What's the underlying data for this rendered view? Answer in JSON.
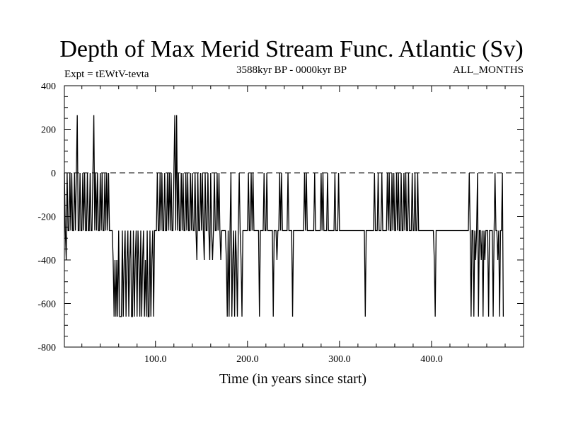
{
  "chart_data": {
    "type": "line",
    "title": "Depth of Max Merid Stream Func. Atlantic (Sv)",
    "subtitle_left": "Expt = tEWtV-tevta",
    "subtitle_center": "3588kyr BP - 0000kyr BP",
    "subtitle_right": "ALL_MONTHS",
    "xlabel": "Time (in years since start)",
    "ylabel": "",
    "xlim": [
      1,
      500
    ],
    "ylim": [
      -800,
      400
    ],
    "x_ticks": [
      100,
      200,
      300,
      400
    ],
    "x_tick_labels": [
      "100.0",
      "200.0",
      "300.0",
      "400.0"
    ],
    "y_ticks": [
      -800,
      -600,
      -400,
      -200,
      0,
      200,
      400
    ],
    "y_tick_labels": [
      "-800",
      "-600",
      "-400",
      "-200",
      "0",
      "200",
      "400"
    ],
    "zero_line": 0,
    "grid": false,
    "series": [
      {
        "x_start": 1,
        "x_step": 1,
        "values": [
          0,
          -265,
          -400,
          0,
          -265,
          -265,
          0,
          -265,
          0,
          -265,
          -265,
          0,
          -265,
          0,
          265,
          -265,
          -265,
          0,
          -265,
          -265,
          0,
          -265,
          0,
          -265,
          -265,
          0,
          -265,
          -265,
          0,
          -265,
          -265,
          0,
          265,
          -265,
          0,
          -265,
          0,
          -265,
          -265,
          0,
          -265,
          0,
          -265,
          -265,
          0,
          -265,
          0,
          -265,
          0,
          -265,
          -265,
          -265,
          -265,
          -400,
          -660,
          -400,
          -660,
          -400,
          -660,
          -265,
          -660,
          -660,
          -660,
          -265,
          -660,
          -400,
          -265,
          -660,
          -400,
          -265,
          -660,
          -400,
          -265,
          -660,
          -660,
          -265,
          -660,
          -400,
          -265,
          -660,
          -265,
          -400,
          -660,
          -265,
          -660,
          -400,
          -265,
          -660,
          -400,
          -660,
          -265,
          -660,
          -660,
          -265,
          -660,
          -400,
          -265,
          -660,
          -265,
          -265,
          -265,
          0,
          -265,
          -265,
          0,
          -265,
          0,
          -265,
          -265,
          0,
          -265,
          -265,
          0,
          -265,
          0,
          -265,
          0,
          -265,
          -265,
          0,
          265,
          -265,
          265,
          -265,
          0,
          -265,
          -265,
          0,
          -265,
          0,
          -265,
          -265,
          0,
          -265,
          0,
          -265,
          -265,
          0,
          -265,
          0,
          -265,
          -265,
          0,
          -265,
          -400,
          0,
          -265,
          -265,
          0,
          -265,
          0,
          -265,
          -400,
          0,
          -265,
          -265,
          0,
          -265,
          -400,
          0,
          -265,
          -400,
          -265,
          0,
          -265,
          -265,
          0,
          -265,
          0,
          -265,
          -400,
          -265,
          -265,
          -265,
          -265,
          -265,
          -400,
          -660,
          -265,
          -660,
          -265,
          0,
          -660,
          -400,
          -265,
          -660,
          -265,
          -400,
          -660,
          -265,
          0,
          -265,
          -400,
          -660,
          -265,
          -265,
          -265,
          -265,
          -265,
          -265,
          0,
          -265,
          -265,
          0,
          -265,
          0,
          -265,
          -265,
          -265,
          -265,
          -265,
          -265,
          -660,
          -265,
          -265,
          -265,
          -265,
          0,
          -265,
          -265,
          0,
          -265,
          -265,
          -265,
          -265,
          -265,
          -265,
          -660,
          -265,
          -265,
          -265,
          -400,
          -265,
          -265,
          0,
          -265,
          0,
          -265,
          -265,
          -265,
          -265,
          -265,
          -265,
          0,
          -265,
          -265,
          -265,
          -265,
          -660,
          -265,
          -265,
          -265,
          -265,
          -265,
          -265,
          -265,
          -265,
          -265,
          -265,
          -265,
          -265,
          0,
          -265,
          0,
          -265,
          -265,
          -265,
          -265,
          -265,
          -265,
          -265,
          -265,
          0,
          -265,
          -265,
          -265,
          -265,
          -265,
          -265,
          0,
          -265,
          0,
          -265,
          -265,
          -265,
          -265,
          0,
          -265,
          -265,
          -265,
          -265,
          -265,
          -265,
          -265,
          0,
          -265,
          -265,
          -265,
          0,
          -265,
          -265,
          -265,
          -265,
          -265,
          -265,
          -265,
          -265,
          -265,
          -265,
          -265,
          -265,
          -265,
          -265,
          -265,
          -265,
          -265,
          -265,
          -265,
          -265,
          -265,
          -265,
          -265,
          -265,
          -265,
          -265,
          -265,
          -265,
          -660,
          -265,
          -265,
          -265,
          -265,
          -265,
          -265,
          -265,
          -265,
          -265,
          0,
          -265,
          -265,
          -265,
          0,
          -265,
          -265,
          -265,
          0,
          -265,
          -265,
          -265,
          -265,
          -265,
          0,
          -265,
          0,
          -265,
          -265,
          0,
          -265,
          0,
          -265,
          -265,
          0,
          -265,
          0,
          -265,
          -265,
          0,
          -265,
          -265,
          0,
          -265,
          0,
          -265,
          -265,
          0,
          -265,
          -265,
          -265,
          0,
          -265,
          -265,
          0,
          -265,
          -265,
          0,
          -265,
          -265,
          -265,
          -265,
          -265,
          -265,
          -265,
          -265,
          -265,
          -265,
          -265,
          -265,
          -265,
          -265,
          -265,
          -265,
          -265,
          -400,
          -660,
          -265,
          -265,
          -265,
          -265,
          -265,
          -265,
          -265,
          -265,
          -265,
          -265,
          -265,
          -265,
          -265,
          -265,
          -265,
          -265,
          -265,
          -265,
          -265,
          -265,
          -265,
          -265,
          -265,
          -265,
          -265,
          -265,
          -265,
          -265,
          -265,
          -265,
          -265,
          -265,
          -265,
          -265,
          -265,
          -265,
          0,
          -265,
          -660,
          -265,
          -265,
          -660,
          -265,
          -400,
          -265,
          0,
          -660,
          -265,
          -265,
          -400,
          -265,
          -660,
          -265,
          -400,
          -265,
          -265,
          -265,
          -660,
          -265,
          -265,
          -265,
          -265,
          -660,
          -265,
          0,
          -265,
          -265,
          -400,
          -265,
          -660,
          -265,
          -265,
          0,
          -660
        ]
      }
    ]
  }
}
